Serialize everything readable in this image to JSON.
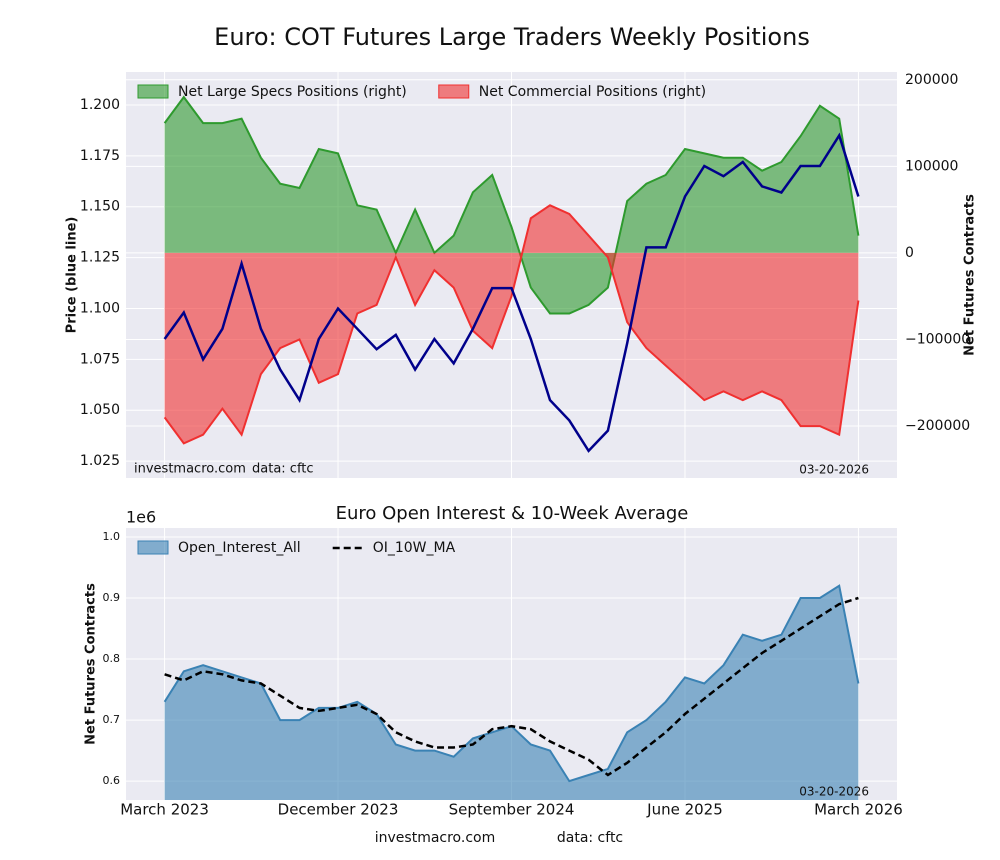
{
  "chart_data": [
    {
      "type": "combo",
      "title": "Euro: COT Futures Large Traders Weekly Positions",
      "ylabel": "Price (blue line)",
      "y2label": "Net Futures Contracts",
      "watermark": [
        "investmacro.com",
        "data: cftc"
      ],
      "date_label": "03-20-2026",
      "legend": "upper left",
      "grid": true,
      "x": [
        "2023-03",
        "2023-04",
        "2023-05",
        "2023-06",
        "2023-07",
        "2023-08",
        "2023-09",
        "2023-10",
        "2023-11",
        "2023-12",
        "2024-01",
        "2024-02",
        "2024-03",
        "2024-04",
        "2024-05",
        "2024-06",
        "2024-07",
        "2024-08",
        "2024-09",
        "2024-10",
        "2024-11",
        "2024-12",
        "2025-01",
        "2025-02",
        "2025-03",
        "2025-04",
        "2025-05",
        "2025-06",
        "2025-07",
        "2025-08",
        "2025-09",
        "2025-10",
        "2025-11",
        "2025-12",
        "2026-01",
        "2026-02",
        "2026-03"
      ],
      "xlim": [
        "2023-01",
        "2026-05"
      ],
      "xticks": [
        {
          "value": "2023-03",
          "label": "March 2023"
        },
        {
          "value": "2023-12",
          "label": "December 2023"
        },
        {
          "value": "2024-09",
          "label": "September 2024"
        },
        {
          "value": "2025-06",
          "label": "June 2025"
        },
        {
          "value": "2026-03",
          "label": "March 2026"
        }
      ],
      "ylim": [
        1.0167,
        1.2162
      ],
      "yticks": [
        {
          "value": 1.025,
          "label": "1.025"
        },
        {
          "value": 1.05,
          "label": "1.050"
        },
        {
          "value": 1.075,
          "label": "1.075"
        },
        {
          "value": 1.1,
          "label": "1.100"
        },
        {
          "value": 1.125,
          "label": "1.125"
        },
        {
          "value": 1.15,
          "label": "1.150"
        },
        {
          "value": 1.175,
          "label": "1.175"
        },
        {
          "value": 1.2,
          "label": "1.200"
        }
      ],
      "y2lim": [
        -260000,
        209000
      ],
      "y2ticks": [
        {
          "value": -200000,
          "label": "−200000"
        },
        {
          "value": -100000,
          "label": "−100000"
        },
        0,
        100000,
        200000
      ],
      "series": [
        {
          "name": "Net Large Specs Positions (right)",
          "type": "area",
          "axis": "y2",
          "color": "#2e9a2e",
          "values": [
            150000,
            180000,
            150000,
            150000,
            155000,
            110000,
            80000,
            75000,
            120000,
            115000,
            55000,
            50000,
            0,
            50000,
            0,
            20000,
            70000,
            90000,
            30000,
            -40000,
            -70000,
            -70000,
            -60000,
            -40000,
            60000,
            80000,
            90000,
            120000,
            115000,
            110000,
            110000,
            95000,
            105000,
            135000,
            170000,
            155000,
            20000
          ]
        },
        {
          "name": "Net Commercial Positions (right)",
          "type": "area",
          "axis": "y2",
          "color": "#f03030",
          "values": [
            -190000,
            -220000,
            -210000,
            -180000,
            -210000,
            -140000,
            -110000,
            -100000,
            -150000,
            -140000,
            -70000,
            -60000,
            -5000,
            -60000,
            -20000,
            -40000,
            -90000,
            -110000,
            -50000,
            40000,
            55000,
            45000,
            20000,
            -5000,
            -80000,
            -110000,
            -130000,
            -150000,
            -170000,
            -160000,
            -170000,
            -160000,
            -170000,
            -200000,
            -200000,
            -210000,
            -55000
          ]
        },
        {
          "type": "line",
          "axis": "y",
          "color": "#00008b",
          "values": [
            1.085,
            1.098,
            1.075,
            1.09,
            1.122,
            1.09,
            1.07,
            1.055,
            1.085,
            1.1,
            1.09,
            1.08,
            1.087,
            1.07,
            1.085,
            1.073,
            1.09,
            1.11,
            1.11,
            1.085,
            1.055,
            1.045,
            1.03,
            1.04,
            1.083,
            1.13,
            1.13,
            1.155,
            1.17,
            1.165,
            1.172,
            1.16,
            1.157,
            1.17,
            1.17,
            1.185,
            1.155
          ]
        }
      ]
    },
    {
      "type": "area",
      "title": "Euro Open Interest & 10-Week Average",
      "ylabel": "Net Futures Contracts",
      "y_offset_label": "1e6",
      "date_label": "03-20-2026",
      "legend": "upper left",
      "grid": true,
      "x": [
        "2023-03",
        "2023-04",
        "2023-05",
        "2023-06",
        "2023-07",
        "2023-08",
        "2023-09",
        "2023-10",
        "2023-11",
        "2023-12",
        "2024-01",
        "2024-02",
        "2024-03",
        "2024-04",
        "2024-05",
        "2024-06",
        "2024-07",
        "2024-08",
        "2024-09",
        "2024-10",
        "2024-11",
        "2024-12",
        "2025-01",
        "2025-02",
        "2025-03",
        "2025-04",
        "2025-05",
        "2025-06",
        "2025-07",
        "2025-08",
        "2025-09",
        "2025-10",
        "2025-11",
        "2025-12",
        "2026-01",
        "2026-02",
        "2026-03"
      ],
      "xlim": [
        "2023-01",
        "2026-05"
      ],
      "xticks": [
        {
          "value": "2023-03",
          "label": "March 2023"
        },
        {
          "value": "2023-12",
          "label": "December 2023"
        },
        {
          "value": "2024-09",
          "label": "September 2024"
        },
        {
          "value": "2025-06",
          "label": "June 2025"
        },
        {
          "value": "2026-03",
          "label": "March 2026"
        }
      ],
      "ylim": [
        0.569,
        1.0148
      ],
      "yticks": [
        0.6,
        0.7,
        0.8,
        0.9,
        {
          "value": 1,
          "label": "1.0"
        }
      ],
      "series": [
        {
          "name": "Open_Interest_All",
          "type": "area",
          "color": "#3a82b4",
          "values": [
            0.73,
            0.78,
            0.79,
            0.78,
            0.77,
            0.76,
            0.7,
            0.7,
            0.72,
            0.72,
            0.73,
            0.71,
            0.66,
            0.65,
            0.65,
            0.64,
            0.67,
            0.68,
            0.69,
            0.66,
            0.65,
            0.6,
            0.61,
            0.62,
            0.68,
            0.7,
            0.73,
            0.77,
            0.76,
            0.79,
            0.84,
            0.83,
            0.84,
            0.9,
            0.9,
            0.92,
            0.76
          ]
        },
        {
          "name": "OI_10W_MA",
          "type": "dashed",
          "color": "#000000",
          "values": [
            0.775,
            0.765,
            0.78,
            0.775,
            0.765,
            0.76,
            0.74,
            0.72,
            0.715,
            0.72,
            0.725,
            0.71,
            0.68,
            0.665,
            0.655,
            0.655,
            0.66,
            0.685,
            0.69,
            0.685,
            0.665,
            0.65,
            0.635,
            0.61,
            0.63,
            0.655,
            0.68,
            0.71,
            0.735,
            0.76,
            0.785,
            0.81,
            0.83,
            0.85,
            0.87,
            0.89,
            0.9
          ]
        }
      ]
    }
  ],
  "footer": {
    "site": "investmacro.com",
    "source": "data: cftc"
  }
}
